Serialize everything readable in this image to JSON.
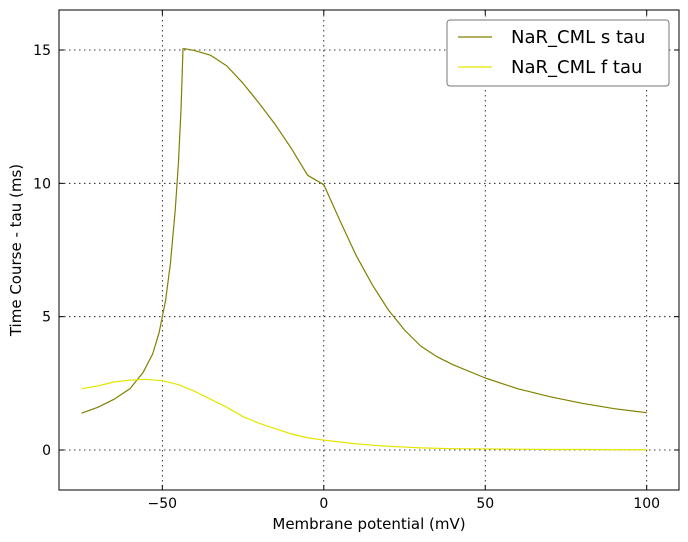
{
  "chart_data": {
    "type": "line",
    "title": "",
    "xlabel": "Membrane potential (mV)",
    "ylabel": "Time Course - tau (ms)",
    "xlim": [
      -82,
      110
    ],
    "ylim": [
      -1.5,
      16.5
    ],
    "xticks": [
      -50,
      0,
      50,
      100
    ],
    "xtick_labels": [
      "−50",
      "0",
      "50",
      "100"
    ],
    "yticks": [
      0,
      5,
      10,
      15
    ],
    "ytick_labels": [
      "0",
      "5",
      "10",
      "15"
    ],
    "grid": true,
    "legend_position": "top-right",
    "series": [
      {
        "name": "NaR_CML s tau",
        "color": "#808000",
        "x": [
          -75,
          -70,
          -65,
          -60,
          -56,
          -53,
          -51,
          -49,
          -47.5,
          -46,
          -45,
          -44.2,
          -43.6,
          -43,
          -40,
          -35,
          -30,
          -25,
          -20,
          -15,
          -10,
          -5,
          0,
          5,
          10,
          15,
          20,
          25,
          30,
          35,
          40,
          50,
          60,
          70,
          80,
          90,
          100
        ],
        "y": [
          1.38,
          1.6,
          1.9,
          2.3,
          2.9,
          3.6,
          4.4,
          5.6,
          7.0,
          9.0,
          10.8,
          12.8,
          15.05,
          15.05,
          14.98,
          14.8,
          14.4,
          13.75,
          13.0,
          12.2,
          11.3,
          10.3,
          9.95,
          8.6,
          7.3,
          6.2,
          5.25,
          4.5,
          3.9,
          3.5,
          3.2,
          2.7,
          2.3,
          2.0,
          1.75,
          1.55,
          1.4
        ]
      },
      {
        "name": "NaR_CML f tau",
        "color": "#e5e500",
        "x": [
          -75,
          -70,
          -65,
          -60,
          -55,
          -50,
          -45,
          -40,
          -35,
          -30,
          -25,
          -20,
          -15,
          -10,
          -5,
          0,
          5,
          10,
          15,
          20,
          25,
          30,
          40,
          50,
          60,
          70,
          80,
          90,
          100
        ],
        "y": [
          2.3,
          2.4,
          2.55,
          2.62,
          2.65,
          2.6,
          2.45,
          2.2,
          1.9,
          1.6,
          1.25,
          1.0,
          0.8,
          0.6,
          0.46,
          0.37,
          0.3,
          0.23,
          0.18,
          0.14,
          0.11,
          0.08,
          0.05,
          0.04,
          0.03,
          0.02,
          0.02,
          0.01,
          0.01
        ]
      }
    ]
  }
}
